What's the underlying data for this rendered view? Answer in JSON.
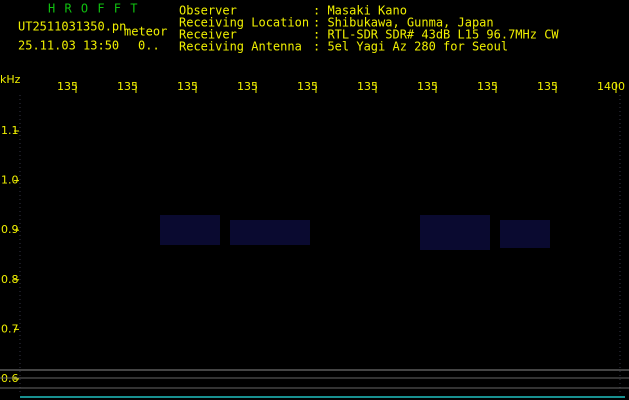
{
  "header": {
    "app": "H R O F F T",
    "file": "UT2511031350.pn",
    "tag": "meteor",
    "datetime": "25.11.03 13:50",
    "count": "0..",
    "fields": [
      {
        "label": "Observer",
        "value": ": Masaki Kano"
      },
      {
        "label": "Receiving Location",
        "value": ": Shibukawa, Gunma, Japan"
      },
      {
        "label": "Receiver",
        "value": ": RTL-SDR SDR# 43dB L15 96.7MHz CW"
      },
      {
        "label": "Receiving Antenna",
        "value": ": 5el Yagi Az 280 for Seoul"
      }
    ]
  },
  "x_axis": {
    "unit": "kHz",
    "labels": [
      "135",
      "135",
      "135",
      "135",
      "135",
      "135",
      "135",
      "135",
      "135",
      "1400"
    ]
  },
  "y_axis": {
    "labels": [
      "1.1",
      "1.0",
      "0.9",
      "0.8",
      "0.7",
      "0.6"
    ]
  }
}
